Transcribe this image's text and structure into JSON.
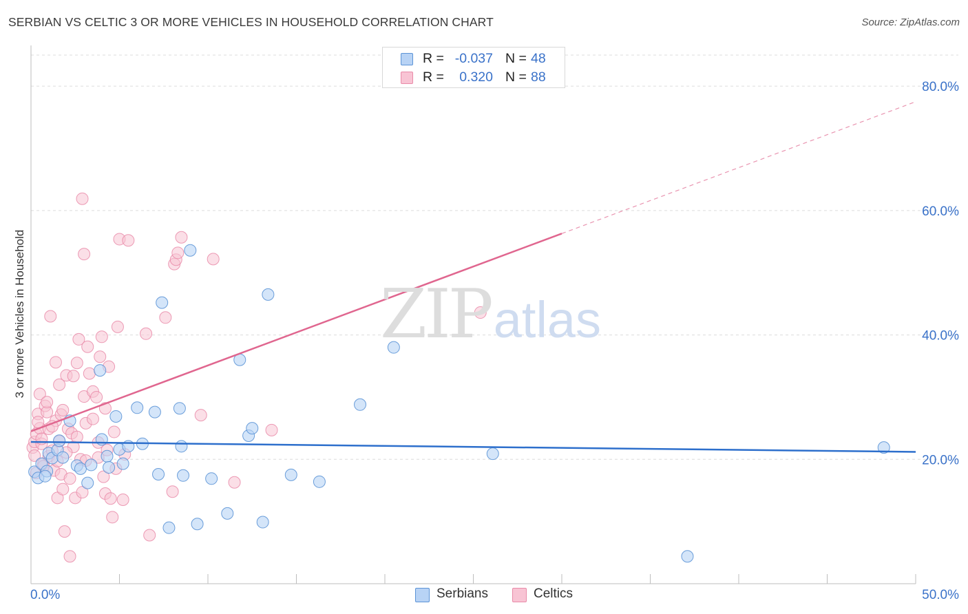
{
  "title": "SERBIAN VS CELTIC 3 OR MORE VEHICLES IN HOUSEHOLD CORRELATION CHART",
  "source": "Source: ZipAtlas.com",
  "watermark": {
    "part1": "ZIP",
    "part2": "atlas"
  },
  "colors": {
    "serbian_fill": "#b8d3f5",
    "serbian_stroke": "#5b93d6",
    "serbian_line": "#2d6fcc",
    "celtic_fill": "#f8c4d4",
    "celtic_stroke": "#e98aa8",
    "celtic_line": "#e0668f",
    "tick_label": "#3a72c9",
    "grid": "#dcdcdc"
  },
  "legend": {
    "rows": [
      {
        "series": "Serbians",
        "r_label": "R =",
        "r_value": "-0.037",
        "n_label": "N =",
        "n_value": "48"
      },
      {
        "series": "Celtics",
        "r_label": "R =",
        "r_value": "0.320",
        "n_label": "N =",
        "n_value": "88"
      }
    ]
  },
  "chart_data": {
    "type": "scatter",
    "title": "SERBIAN VS CELTIC 3 OR MORE VEHICLES IN HOUSEHOLD CORRELATION CHART",
    "xlabel": "",
    "ylabel": "3 or more Vehicles in Household",
    "xlim": [
      0,
      50
    ],
    "ylim": [
      0,
      85
    ],
    "x_tick_labels": [
      "0.0%",
      "50.0%"
    ],
    "y_ticks": [
      20,
      40,
      60,
      80
    ],
    "y_tick_labels": [
      "20.0%",
      "40.0%",
      "60.0%",
      "80.0%"
    ],
    "grid": true,
    "legend_position": "top-center",
    "series": [
      {
        "name": "Serbians",
        "stats": {
          "R": -0.037,
          "N": 48
        },
        "trend": {
          "x": [
            0,
            50
          ],
          "y": [
            22.8,
            21.2
          ],
          "dashed_extension": false
        },
        "points": [
          [
            0.2,
            18.0
          ],
          [
            0.4,
            17.0
          ],
          [
            0.6,
            19.3
          ],
          [
            0.9,
            18.1
          ],
          [
            1.0,
            21.0
          ],
          [
            1.2,
            20.2
          ],
          [
            1.5,
            21.5
          ],
          [
            1.6,
            23.0
          ],
          [
            1.8,
            20.3
          ],
          [
            2.2,
            26.2
          ],
          [
            2.6,
            19.0
          ],
          [
            2.8,
            18.5
          ],
          [
            3.2,
            16.2
          ],
          [
            3.4,
            19.1
          ],
          [
            3.9,
            34.3
          ],
          [
            4.0,
            23.2
          ],
          [
            4.3,
            20.5
          ],
          [
            4.4,
            18.7
          ],
          [
            4.8,
            26.9
          ],
          [
            5.0,
            21.6
          ],
          [
            5.2,
            19.3
          ],
          [
            5.5,
            22.1
          ],
          [
            6.0,
            28.3
          ],
          [
            6.3,
            22.5
          ],
          [
            7.0,
            27.6
          ],
          [
            7.2,
            17.6
          ],
          [
            7.4,
            45.2
          ],
          [
            8.4,
            28.2
          ],
          [
            8.5,
            22.1
          ],
          [
            8.6,
            17.4
          ],
          [
            9.0,
            53.6
          ],
          [
            9.4,
            9.6
          ],
          [
            7.8,
            9.0
          ],
          [
            10.2,
            16.9
          ],
          [
            11.1,
            11.3
          ],
          [
            11.8,
            36.0
          ],
          [
            12.3,
            23.8
          ],
          [
            12.5,
            25.0
          ],
          [
            13.1,
            9.9
          ],
          [
            13.4,
            46.5
          ],
          [
            14.7,
            17.5
          ],
          [
            16.3,
            16.4
          ],
          [
            18.6,
            28.8
          ],
          [
            20.5,
            38.0
          ],
          [
            26.1,
            20.9
          ],
          [
            37.1,
            4.4
          ],
          [
            48.2,
            21.9
          ],
          [
            0.8,
            17.3
          ]
        ]
      },
      {
        "name": "Celtics",
        "stats": {
          "R": 0.32,
          "N": 88
        },
        "trend": {
          "x": [
            0,
            30
          ],
          "y": [
            24.5,
            56.3
          ],
          "dashed_x": [
            30,
            50
          ],
          "dashed_y": [
            56.3,
            77.5
          ]
        },
        "points": [
          [
            0.1,
            21.9
          ],
          [
            0.2,
            22.8
          ],
          [
            0.3,
            24.1
          ],
          [
            0.4,
            27.3
          ],
          [
            0.5,
            30.5
          ],
          [
            0.5,
            25.0
          ],
          [
            0.6,
            22.5
          ],
          [
            0.7,
            19.3
          ],
          [
            0.8,
            28.6
          ],
          [
            0.9,
            27.6
          ],
          [
            1.0,
            24.9
          ],
          [
            1.0,
            20.5
          ],
          [
            1.1,
            43.0
          ],
          [
            1.2,
            21.4
          ],
          [
            1.3,
            18.2
          ],
          [
            1.4,
            26.2
          ],
          [
            1.4,
            35.6
          ],
          [
            1.5,
            13.8
          ],
          [
            1.6,
            32.0
          ],
          [
            1.7,
            17.6
          ],
          [
            1.7,
            27.2
          ],
          [
            1.8,
            15.2
          ],
          [
            1.9,
            8.4
          ],
          [
            2.0,
            33.5
          ],
          [
            2.1,
            24.9
          ],
          [
            2.2,
            4.4
          ],
          [
            2.3,
            24.2
          ],
          [
            2.4,
            33.4
          ],
          [
            2.4,
            22.0
          ],
          [
            2.5,
            13.8
          ],
          [
            2.6,
            35.5
          ],
          [
            2.7,
            39.3
          ],
          [
            2.8,
            20.0
          ],
          [
            2.9,
            61.9
          ],
          [
            3.0,
            30.1
          ],
          [
            3.0,
            53.0
          ],
          [
            3.1,
            25.8
          ],
          [
            3.2,
            38.1
          ],
          [
            3.3,
            33.8
          ],
          [
            3.5,
            30.9
          ],
          [
            3.7,
            30.0
          ],
          [
            3.8,
            20.3
          ],
          [
            3.9,
            36.5
          ],
          [
            4.0,
            39.7
          ],
          [
            4.1,
            17.2
          ],
          [
            4.2,
            14.5
          ],
          [
            4.3,
            21.5
          ],
          [
            4.4,
            34.9
          ],
          [
            4.5,
            13.7
          ],
          [
            4.6,
            10.7
          ],
          [
            4.8,
            18.5
          ],
          [
            4.9,
            41.3
          ],
          [
            5.0,
            55.4
          ],
          [
            5.2,
            13.5
          ],
          [
            5.3,
            20.8
          ],
          [
            5.5,
            55.2
          ],
          [
            6.5,
            40.2
          ],
          [
            6.7,
            7.8
          ],
          [
            7.6,
            42.8
          ],
          [
            8.0,
            14.8
          ],
          [
            8.1,
            51.4
          ],
          [
            8.2,
            52.1
          ],
          [
            8.3,
            53.2
          ],
          [
            8.5,
            55.7
          ],
          [
            9.6,
            27.1
          ],
          [
            10.3,
            52.2
          ],
          [
            11.5,
            16.3
          ],
          [
            13.6,
            24.7
          ],
          [
            25.4,
            43.6
          ],
          [
            0.3,
            17.8
          ],
          [
            0.4,
            26.0
          ],
          [
            0.6,
            23.3
          ],
          [
            0.9,
            29.2
          ],
          [
            1.2,
            25.3
          ],
          [
            1.5,
            19.7
          ],
          [
            1.8,
            27.9
          ],
          [
            2.0,
            21.1
          ],
          [
            2.2,
            16.9
          ],
          [
            2.6,
            23.6
          ],
          [
            2.9,
            14.7
          ],
          [
            3.1,
            19.8
          ],
          [
            3.5,
            26.5
          ],
          [
            3.8,
            22.7
          ],
          [
            4.2,
            28.2
          ],
          [
            4.7,
            24.4
          ],
          [
            0.2,
            20.6
          ],
          [
            0.7,
            18.9
          ],
          [
            1.6,
            22.9
          ]
        ]
      }
    ]
  }
}
